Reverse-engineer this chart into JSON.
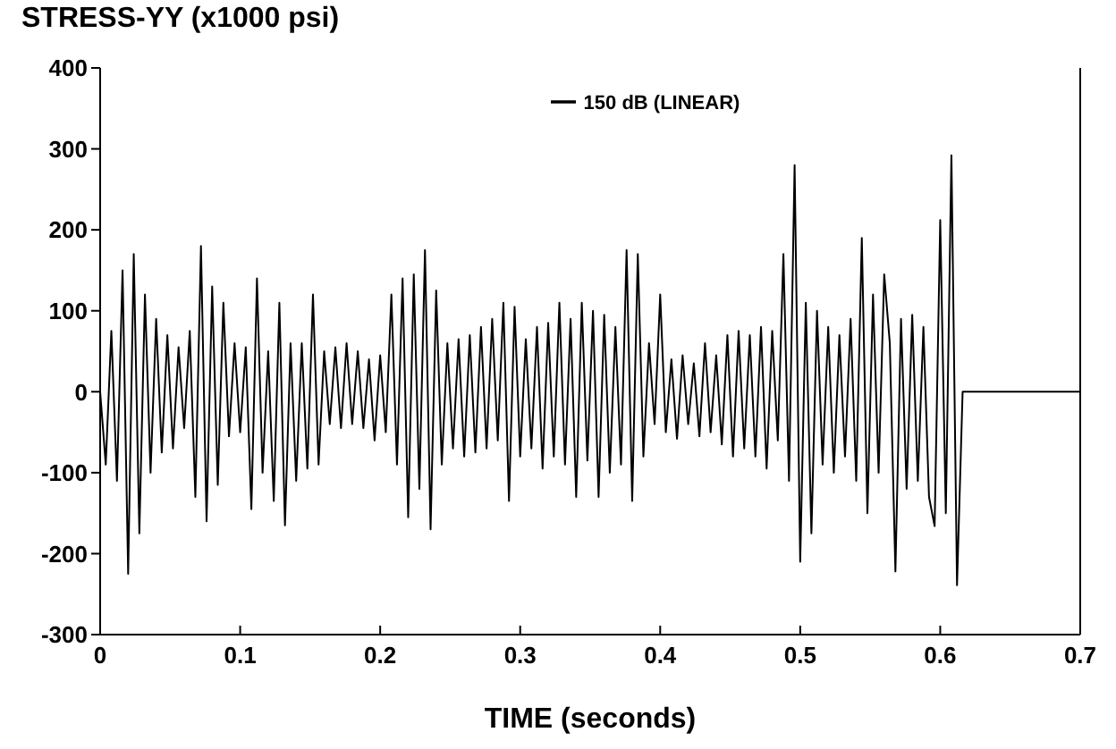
{
  "chart_data": {
    "type": "line",
    "ylabel": "STRESS-YY (x1000 psi)",
    "xlabel": "TIME (seconds)",
    "xlim": [
      0,
      0.7
    ],
    "xticks": [
      0,
      0.1,
      0.2,
      0.3,
      0.4,
      0.5,
      0.6,
      0.7
    ],
    "ylim": [
      -300,
      400
    ],
    "yticks": [
      -300,
      -200,
      -100,
      0,
      100,
      200,
      300,
      400
    ],
    "legend": "top",
    "marker": "none",
    "line_style": "solid",
    "series": [
      {
        "name": "150 dB (LINEAR)",
        "color": "#000000",
        "x": [
          0,
          0.004,
          0.008,
          0.012,
          0.016,
          0.02,
          0.024,
          0.028,
          0.032,
          0.036,
          0.04,
          0.044,
          0.048,
          0.052,
          0.056,
          0.06,
          0.064,
          0.068,
          0.072,
          0.076,
          0.08,
          0.084,
          0.088,
          0.092,
          0.096,
          0.1,
          0.104,
          0.108,
          0.112,
          0.116,
          0.12,
          0.124,
          0.128,
          0.132,
          0.136,
          0.14,
          0.144,
          0.148,
          0.152,
          0.156,
          0.16,
          0.164,
          0.168,
          0.172,
          0.176,
          0.18,
          0.184,
          0.188,
          0.192,
          0.196,
          0.2,
          0.204,
          0.208,
          0.212,
          0.216,
          0.22,
          0.224,
          0.228,
          0.232,
          0.236,
          0.24,
          0.244,
          0.248,
          0.252,
          0.256,
          0.26,
          0.264,
          0.268,
          0.272,
          0.276,
          0.28,
          0.284,
          0.288,
          0.292,
          0.296,
          0.3,
          0.304,
          0.308,
          0.312,
          0.316,
          0.32,
          0.324,
          0.328,
          0.332,
          0.336,
          0.34,
          0.344,
          0.348,
          0.352,
          0.356,
          0.36,
          0.364,
          0.368,
          0.372,
          0.376,
          0.38,
          0.384,
          0.388,
          0.392,
          0.396,
          0.4,
          0.404,
          0.408,
          0.412,
          0.416,
          0.42,
          0.424,
          0.428,
          0.432,
          0.436,
          0.44,
          0.444,
          0.448,
          0.452,
          0.456,
          0.46,
          0.464,
          0.468,
          0.472,
          0.476,
          0.48,
          0.484,
          0.488,
          0.492,
          0.496,
          0.5,
          0.504,
          0.508,
          0.512,
          0.516,
          0.52,
          0.524,
          0.528,
          0.532,
          0.536,
          0.54,
          0.544,
          0.548,
          0.552,
          0.556,
          0.56,
          0.564,
          0.568,
          0.572,
          0.576,
          0.58,
          0.584,
          0.588,
          0.592,
          0.596,
          0.6,
          0.604,
          0.608,
          0.612,
          0.616,
          0.7
        ],
        "values": [
          0,
          -90,
          75,
          -110,
          150,
          -225,
          170,
          -175,
          120,
          -100,
          90,
          -75,
          70,
          -70,
          55,
          -45,
          75,
          -130,
          180,
          -160,
          130,
          -115,
          110,
          -55,
          60,
          -50,
          55,
          -145,
          140,
          -100,
          50,
          -135,
          110,
          -165,
          60,
          -110,
          60,
          -95,
          120,
          -90,
          50,
          -40,
          55,
          -45,
          60,
          -40,
          50,
          -45,
          40,
          -60,
          45,
          -50,
          120,
          -90,
          140,
          -155,
          145,
          -120,
          175,
          -170,
          125,
          -90,
          60,
          -70,
          65,
          -80,
          70,
          -75,
          80,
          -70,
          90,
          -60,
          110,
          -135,
          105,
          -80,
          65,
          -70,
          80,
          -95,
          85,
          -80,
          110,
          -90,
          90,
          -130,
          110,
          -85,
          100,
          -130,
          95,
          -100,
          80,
          -90,
          175,
          -135,
          170,
          -80,
          60,
          -40,
          120,
          -50,
          40,
          -58,
          45,
          -40,
          35,
          -55,
          60,
          -50,
          45,
          -65,
          70,
          -80,
          75,
          -70,
          70,
          -80,
          80,
          -95,
          75,
          -60,
          170,
          -110,
          280,
          -210,
          110,
          -175,
          100,
          -90,
          80,
          -100,
          70,
          -80,
          90,
          -110,
          190,
          -150,
          120,
          -100,
          145,
          60,
          -222,
          90,
          -120,
          95,
          -110,
          80,
          -130,
          -166,
          212,
          -150,
          292,
          -239,
          0,
          0
        ]
      }
    ]
  }
}
